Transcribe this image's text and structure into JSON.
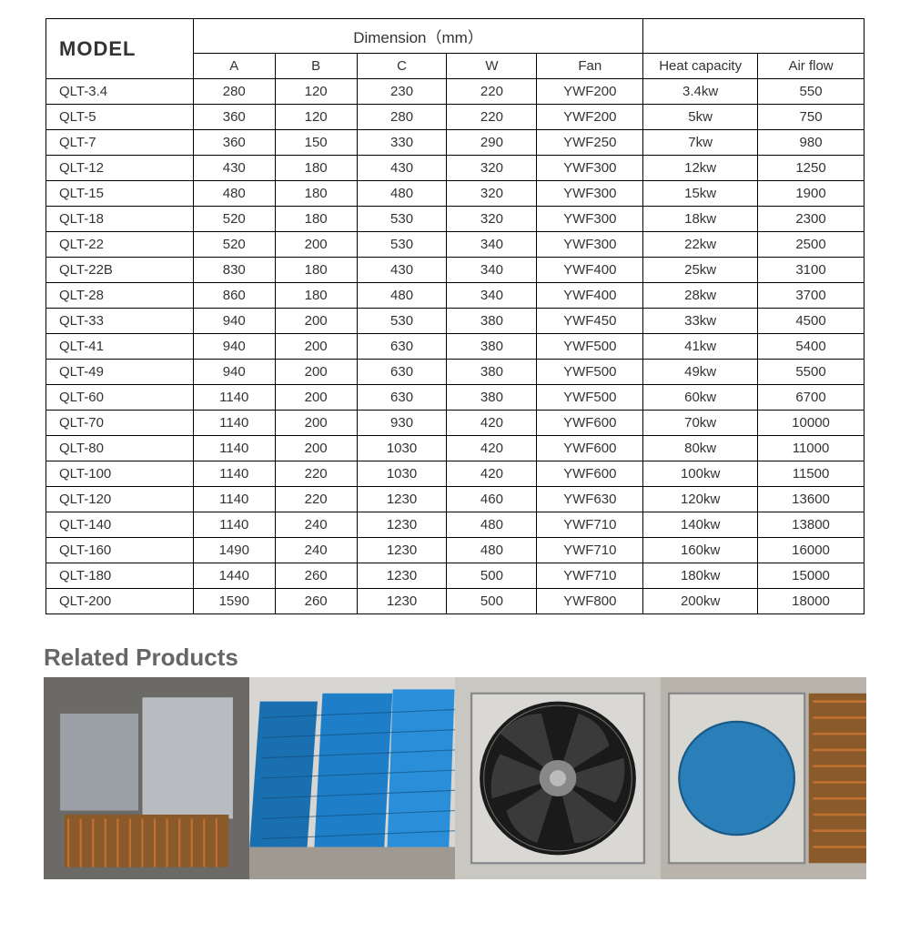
{
  "table": {
    "model_header": "MODEL",
    "dimension_header": "Dimension（mm）",
    "columns": [
      "A",
      "B",
      "C",
      "W",
      "Fan",
      "Heat capacity",
      "Air flow"
    ],
    "rows": [
      {
        "model": "QLT-3.4",
        "A": "280",
        "B": "120",
        "C": "230",
        "W": "220",
        "Fan": "YWF200",
        "Heat": "3.4kw",
        "Air": "550"
      },
      {
        "model": "QLT-5",
        "A": "360",
        "B": "120",
        "C": "280",
        "W": "220",
        "Fan": "YWF200",
        "Heat": "5kw",
        "Air": "750"
      },
      {
        "model": "QLT-7",
        "A": "360",
        "B": "150",
        "C": "330",
        "W": "290",
        "Fan": "YWF250",
        "Heat": "7kw",
        "Air": "980"
      },
      {
        "model": "QLT-12",
        "A": "430",
        "B": "180",
        "C": "430",
        "W": "320",
        "Fan": "YWF300",
        "Heat": "12kw",
        "Air": "1250"
      },
      {
        "model": "QLT-15",
        "A": "480",
        "B": "180",
        "C": "480",
        "W": "320",
        "Fan": "YWF300",
        "Heat": "15kw",
        "Air": "1900"
      },
      {
        "model": "QLT-18",
        "A": "520",
        "B": "180",
        "C": "530",
        "W": "320",
        "Fan": "YWF300",
        "Heat": "18kw",
        "Air": "2300"
      },
      {
        "model": "QLT-22",
        "A": "520",
        "B": "200",
        "C": "530",
        "W": "340",
        "Fan": "YWF300",
        "Heat": "22kw",
        "Air": "2500"
      },
      {
        "model": "QLT-22B",
        "A": "830",
        "B": "180",
        "C": "430",
        "W": "340",
        "Fan": "YWF400",
        "Heat": "25kw",
        "Air": "3100"
      },
      {
        "model": "QLT-28",
        "A": "860",
        "B": "180",
        "C": "480",
        "W": "340",
        "Fan": "YWF400",
        "Heat": "28kw",
        "Air": "3700"
      },
      {
        "model": "QLT-33",
        "A": "940",
        "B": "200",
        "C": "530",
        "W": "380",
        "Fan": "YWF450",
        "Heat": "33kw",
        "Air": "4500"
      },
      {
        "model": "QLT-41",
        "A": "940",
        "B": "200",
        "C": "630",
        "W": "380",
        "Fan": "YWF500",
        "Heat": "41kw",
        "Air": "5400"
      },
      {
        "model": "QLT-49",
        "A": "940",
        "B": "200",
        "C": "630",
        "W": "380",
        "Fan": "YWF500",
        "Heat": "49kw",
        "Air": "5500"
      },
      {
        "model": "QLT-60",
        "A": "1140",
        "B": "200",
        "C": "630",
        "W": "380",
        "Fan": "YWF500",
        "Heat": "60kw",
        "Air": "6700"
      },
      {
        "model": "QLT-70",
        "A": "1140",
        "B": "200",
        "C": "930",
        "W": "420",
        "Fan": "YWF600",
        "Heat": "70kw",
        "Air": "10000"
      },
      {
        "model": "QLT-80",
        "A": "1140",
        "B": "200",
        "C": "1030",
        "W": "420",
        "Fan": "YWF600",
        "Heat": "80kw",
        "Air": "11000"
      },
      {
        "model": "QLT-100",
        "A": "1140",
        "B": "220",
        "C": "1030",
        "W": "420",
        "Fan": "YWF600",
        "Heat": "100kw",
        "Air": "11500"
      },
      {
        "model": "QLT-120",
        "A": "1140",
        "B": "220",
        "C": "1230",
        "W": "460",
        "Fan": "YWF630",
        "Heat": "120kw",
        "Air": "13600"
      },
      {
        "model": "QLT-140",
        "A": "1140",
        "B": "240",
        "C": "1230",
        "W": "480",
        "Fan": "YWF710",
        "Heat": "140kw",
        "Air": "13800"
      },
      {
        "model": "QLT-160",
        "A": "1490",
        "B": "240",
        "C": "1230",
        "W": "480",
        "Fan": "YWF710",
        "Heat": "160kw",
        "Air": "16000"
      },
      {
        "model": "QLT-180",
        "A": "1440",
        "B": "260",
        "C": "1230",
        "W": "500",
        "Fan": "YWF710",
        "Heat": "180kw",
        "Air": "15000"
      },
      {
        "model": "QLT-200",
        "A": "1590",
        "B": "260",
        "C": "1230",
        "W": "500",
        "Fan": "YWF800",
        "Heat": "200kw",
        "Air": "18000"
      }
    ],
    "col_widths": [
      "18%",
      "10%",
      "10%",
      "11%",
      "11%",
      "13%",
      "14%",
      "13%"
    ]
  },
  "related": {
    "title": "Related Products",
    "images": [
      {
        "name": "product-image-1"
      },
      {
        "name": "product-image-2"
      },
      {
        "name": "product-image-3"
      },
      {
        "name": "product-image-4"
      }
    ]
  },
  "style": {
    "border_color": "#000000",
    "text_color": "#333333",
    "related_title_color": "#666666",
    "background": "#ffffff"
  }
}
